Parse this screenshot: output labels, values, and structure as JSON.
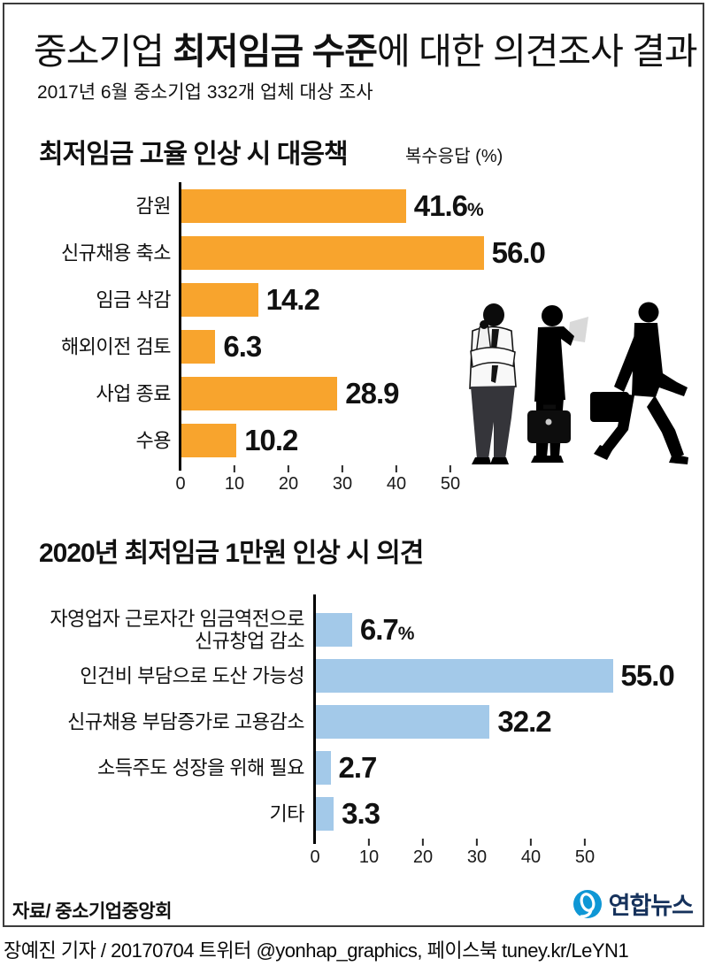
{
  "header": {
    "title_prefix": "중소기업 ",
    "title_bold": "최저임금 수준",
    "title_suffix": "에 대한 의견조사 결과",
    "subtitle": "2017년 6월 중소기업 332개 업체 대상 조사"
  },
  "chart_data": [
    {
      "type": "bar",
      "orientation": "horizontal",
      "title": "최저임금 고율 인상 시 대응책",
      "unit_note": "복수응답 (%)",
      "categories": [
        "감원",
        "신규채용 축소",
        "임금 삭감",
        "해외이전 검토",
        "사업 종료",
        "수용"
      ],
      "values": [
        41.6,
        56.0,
        14.2,
        6.3,
        28.9,
        10.2
      ],
      "value_labels": [
        "41.6",
        "56.0",
        "14.2",
        "6.3",
        "28.9",
        "10.2"
      ],
      "pct_suffix": "%",
      "x_ticks": [
        0,
        10,
        20,
        30,
        40,
        50
      ],
      "xlim": [
        0,
        56
      ],
      "grid": false,
      "bar_color": "#F8A42D"
    },
    {
      "type": "bar",
      "orientation": "horizontal",
      "title": "2020년 최저임금 1만원 인상 시 의견",
      "categories": [
        "자영업자 근로자간 임금역전으로\n신규창업 감소",
        "인건비 부담으로 도산 가능성",
        "신규채용 부담증가로 고용감소",
        "소득주도 성장을 위해 필요",
        "기타"
      ],
      "values": [
        6.7,
        55.0,
        32.2,
        2.7,
        3.3
      ],
      "value_labels": [
        "6.7",
        "55.0",
        "32.2",
        "2.7",
        "3.3"
      ],
      "pct_suffix": "%",
      "x_ticks": [
        0,
        10,
        20,
        30,
        40,
        50
      ],
      "xlim": [
        0,
        55
      ],
      "grid": false,
      "bar_color": "#A3C9E9"
    }
  ],
  "footer": {
    "source": "자료/ 중소기업중앙회",
    "logo_text": "연합뉴스"
  },
  "credit": "장예진 기자 / 20170704 트위터 @yonhap_graphics, 페이스북 tuney.kr/LeYN1",
  "colors": {
    "bar_orange": "#F8A42D",
    "bar_blue": "#A3C9E9",
    "logo_blue": "#0F97D5",
    "logo_navy": "#16325C"
  }
}
